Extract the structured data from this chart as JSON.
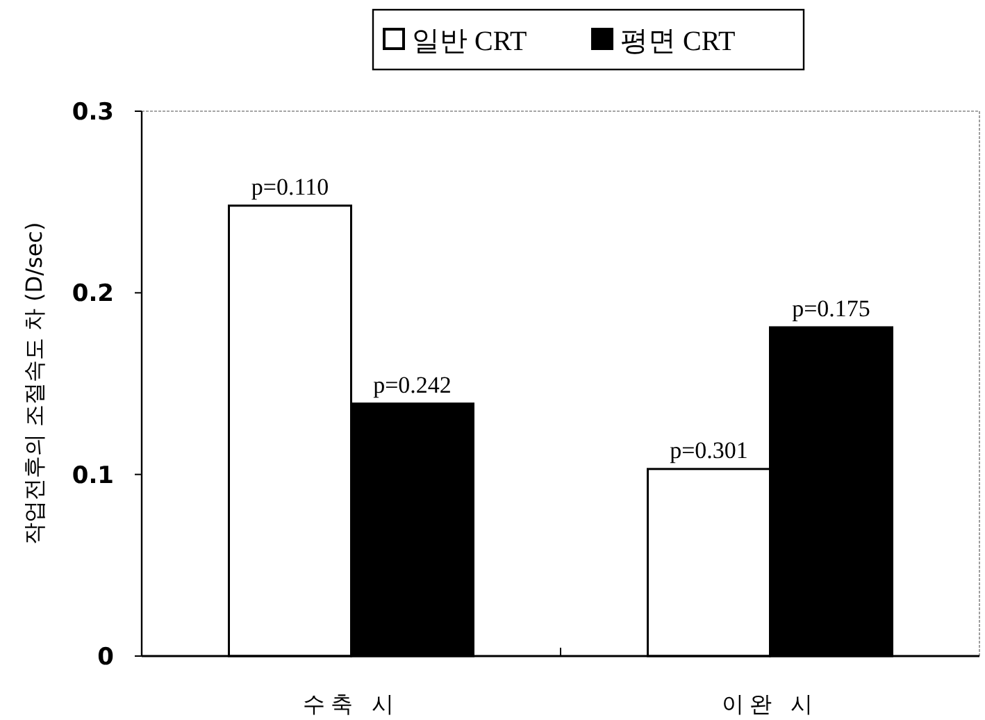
{
  "chart_data": {
    "type": "bar",
    "ylabel": "작업전후의 조절속도 차 (D/sec)",
    "categories": [
      "수축 시",
      "이완 시"
    ],
    "series": [
      {
        "name": "일반 CRT",
        "color": "#ffffff",
        "values": [
          0.248,
          0.103
        ]
      },
      {
        "name": "평면 CRT",
        "color": "#000000",
        "values": [
          0.139,
          0.181
        ]
      }
    ],
    "ylim": [
      0,
      0.3
    ],
    "yticks": [
      0,
      0.1,
      0.2,
      0.3
    ],
    "legend": "top",
    "grid": false,
    "annotations": [
      {
        "text": "p=0.110",
        "x": "수축 시",
        "y": 0.248
      },
      {
        "text": "p=0.242",
        "x": "수축 시",
        "y": 0.139
      },
      {
        "text": "p=0.301",
        "x": "이완 시",
        "y": 0.103
      },
      {
        "text": "p=0.175",
        "x": "이완 시",
        "y": 0.181
      }
    ]
  }
}
